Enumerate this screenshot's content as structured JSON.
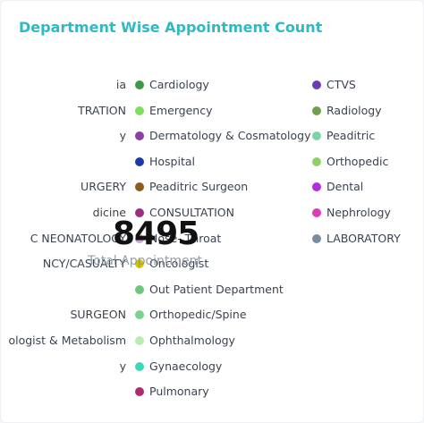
{
  "title": "Department Wise Appointment Count",
  "center": {
    "total": "8495",
    "label": "Total Appointment"
  },
  "left_clipped": [
    "ia",
    "TRATION",
    "y",
    "",
    "URGERY",
    "dicine",
    "C NEONATOLOGY",
    "NCY/CASUALTY",
    "",
    "SURGEON",
    "ologist & Metabolism",
    "y"
  ],
  "middle_items": [
    {
      "label": "Cardiology",
      "color": "#3a9a46"
    },
    {
      "label": "Emergency",
      "color": "#7ee05a"
    },
    {
      "label": "Dermatology & Cosmatology",
      "color": "#8a3fa6"
    },
    {
      "label": "Hospital",
      "color": "#1e3aa8"
    },
    {
      "label": "Peaditric Surgeon",
      "color": "#8b5a1c"
    },
    {
      "label": "CONSULTATION",
      "color": "#9b2d86"
    },
    {
      "label": "Nose- Throat",
      "color": "#c2a8d8"
    },
    {
      "label": "Oncologist",
      "color": "#d6c800"
    },
    {
      "label": "Out Patient Department",
      "color": "#6cc77a"
    },
    {
      "label": "Orthopedic/Spine",
      "color": "#78d290"
    },
    {
      "label": "Ophthalmology",
      "color": "#b8ecb0"
    },
    {
      "label": "Gynaecology",
      "color": "#3ad8b8"
    },
    {
      "label": "Pulmonary",
      "color": "#b0286e"
    }
  ],
  "right_items": [
    {
      "label": "CTVS",
      "color": "#6a3cb8"
    },
    {
      "label": "Radiology",
      "color": "#6f9f4c"
    },
    {
      "label": "Peaditric",
      "color": "#7ad6a6"
    },
    {
      "label": "Orthopedic",
      "color": "#8ed06a"
    },
    {
      "label": "Dental",
      "color": "#b02ee0"
    },
    {
      "label": "Nephrology",
      "color": "#e03ab8"
    },
    {
      "label": "LABORATORY",
      "color": "#7a8aa0"
    }
  ]
}
